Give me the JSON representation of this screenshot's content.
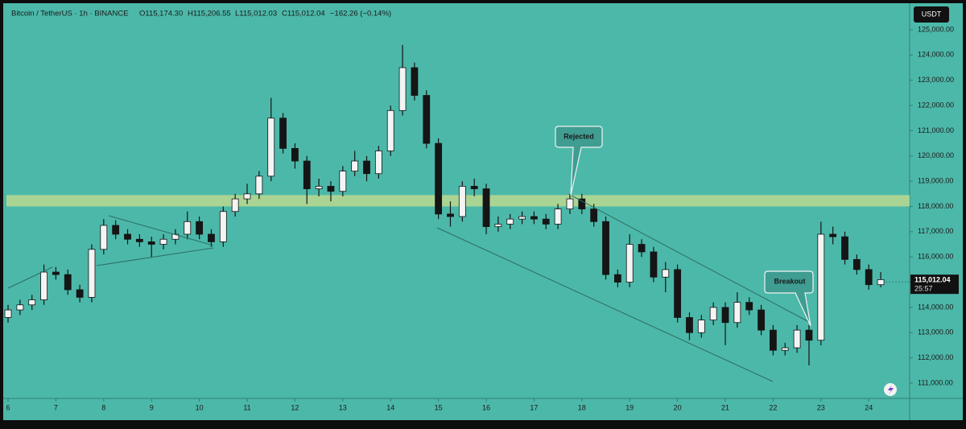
{
  "header": {
    "symbol": "Bitcoin / TetherUS · 1h · BINANCE",
    "open": "O115,174.30",
    "high": "H115,206.55",
    "low": "L115,012.03",
    "close": "C115,012.04",
    "change": "−162.26 (−0.14%)"
  },
  "currency": "USDT",
  "chart_data": {
    "type": "candlestick",
    "x": [
      6,
      6.25,
      6.5,
      6.75,
      7,
      7.25,
      7.5,
      7.75,
      8,
      8.25,
      8.5,
      8.75,
      9,
      9.25,
      9.5,
      9.75,
      10,
      10.25,
      10.5,
      10.75,
      11,
      11.25,
      11.5,
      11.75,
      12,
      12.25,
      12.5,
      12.75,
      13,
      13.25,
      13.5,
      13.75,
      14,
      14.25,
      14.5,
      14.75,
      15,
      15.25,
      15.5,
      15.75,
      16,
      16.25,
      16.5,
      16.75,
      17,
      17.25,
      17.5,
      17.75,
      18,
      18.25,
      18.5,
      18.75,
      19,
      19.25,
      19.5,
      19.75,
      20,
      20.25,
      20.5,
      20.75,
      21,
      21.25,
      21.5,
      21.75,
      22,
      22.25,
      22.5,
      22.75,
      23,
      23.25,
      23.5,
      23.75,
      24,
      24.25
    ],
    "open": [
      113600,
      113900,
      114100,
      114300,
      115400,
      115300,
      114700,
      114400,
      116300,
      117250,
      116900,
      116700,
      116600,
      116500,
      116700,
      116900,
      117400,
      116900,
      116600,
      117800,
      118300,
      118500,
      119200,
      121500,
      120300,
      119800,
      118700,
      118800,
      118600,
      119400,
      119800,
      119300,
      120200,
      121800,
      123500,
      122400,
      120500,
      117700,
      117600,
      118800,
      118700,
      117200,
      117300,
      117500,
      117600,
      117500,
      117300,
      117900,
      118300,
      117900,
      117400,
      115300,
      115000,
      116500,
      116200,
      115200,
      115500,
      113600,
      113000,
      113500,
      114000,
      113400,
      114200,
      113900,
      113100,
      112300,
      112400,
      113100,
      112700,
      116900,
      116800,
      115900,
      115500,
      114900
    ],
    "high": [
      114100,
      114300,
      114500,
      115700,
      115600,
      115500,
      114900,
      116500,
      117500,
      117450,
      117100,
      116900,
      116800,
      116900,
      117100,
      117800,
      117600,
      117100,
      118000,
      118500,
      118900,
      119400,
      122300,
      121700,
      120500,
      120000,
      119100,
      119000,
      119600,
      120200,
      120000,
      120400,
      122000,
      124400,
      123700,
      122600,
      120700,
      118200,
      119000,
      119100,
      118900,
      117600,
      117700,
      117800,
      117800,
      117700,
      118100,
      118500,
      118500,
      118100,
      117600,
      115500,
      116900,
      116700,
      116400,
      115800,
      115700,
      113800,
      113700,
      114200,
      114200,
      114600,
      114400,
      114100,
      113300,
      112600,
      113300,
      113300,
      117400,
      117200,
      117000,
      116100,
      115700,
      115400
    ],
    "low": [
      113400,
      113700,
      113900,
      114100,
      115100,
      114500,
      114200,
      114200,
      116100,
      116700,
      116500,
      116400,
      116000,
      116300,
      116500,
      116700,
      116700,
      116400,
      116400,
      117600,
      118100,
      118300,
      119000,
      120100,
      119500,
      118100,
      118400,
      118200,
      118400,
      119200,
      119000,
      119100,
      120000,
      121600,
      122200,
      120300,
      117500,
      117200,
      117400,
      118400,
      116900,
      117000,
      117100,
      117300,
      117300,
      117100,
      117100,
      117700,
      117700,
      117200,
      115100,
      114800,
      114800,
      116000,
      115000,
      114600,
      113400,
      112700,
      112800,
      113300,
      112500,
      113200,
      113700,
      112900,
      112100,
      112100,
      112200,
      111700,
      112500,
      116500,
      115700,
      115300,
      114700,
      114800
    ],
    "close": [
      113900,
      114100,
      114300,
      115400,
      115300,
      114700,
      114400,
      116300,
      117250,
      116900,
      116700,
      116600,
      116500,
      116700,
      116900,
      117400,
      116900,
      116600,
      117800,
      118300,
      118500,
      119200,
      121500,
      120300,
      119800,
      118700,
      118800,
      118600,
      119400,
      119800,
      119300,
      120200,
      121800,
      123500,
      122400,
      120500,
      117700,
      117600,
      118800,
      118700,
      117200,
      117300,
      117500,
      117600,
      117500,
      117300,
      117900,
      118300,
      117900,
      117400,
      115300,
      115000,
      116500,
      116200,
      115200,
      115500,
      113600,
      113000,
      113500,
      114000,
      113400,
      114200,
      113900,
      113100,
      112300,
      112400,
      113100,
      112700,
      116900,
      116800,
      115900,
      115500,
      114900,
      115100
    ],
    "up_color": "#f4f4f4",
    "down_color": "#151515",
    "xlim": [
      5.966,
      24.855
    ],
    "xticks": [
      6,
      7,
      8,
      9,
      10,
      11,
      12,
      13,
      14,
      15,
      16,
      17,
      18,
      19,
      20,
      21,
      22,
      23,
      24
    ],
    "ylim": [
      110394,
      126180
    ],
    "yticks": [
      {
        "value": 111000,
        "label": "111,000.00"
      },
      {
        "value": 112000,
        "label": "112,000.00"
      },
      {
        "value": 113000,
        "label": "113,000.00"
      },
      {
        "value": 114000,
        "label": "114,000.00"
      },
      {
        "value": 115000,
        "label": "115,000.00"
      },
      {
        "value": 116000,
        "label": "116,000.00"
      },
      {
        "value": 117000,
        "label": "117,000.00"
      },
      {
        "value": 118000,
        "label": "118,000.00"
      },
      {
        "value": 119000,
        "label": "119,000.00"
      },
      {
        "value": 120000,
        "label": "120,000.00"
      },
      {
        "value": 121000,
        "label": "121,000.00"
      },
      {
        "value": 122000,
        "label": "122,000.00"
      },
      {
        "value": 123000,
        "label": "123,000.00"
      },
      {
        "value": 124000,
        "label": "124,000.00"
      },
      {
        "value": 125000,
        "label": "125,000.00"
      }
    ],
    "grid": false,
    "zone": [
      118000,
      118450
    ],
    "zone_color": "#c9de8c",
    "last_price": {
      "value": 115012.04,
      "label": "115,012.04"
    },
    "countdown": "25:57",
    "annotations": [
      "Rejected",
      "Breakout"
    ]
  }
}
